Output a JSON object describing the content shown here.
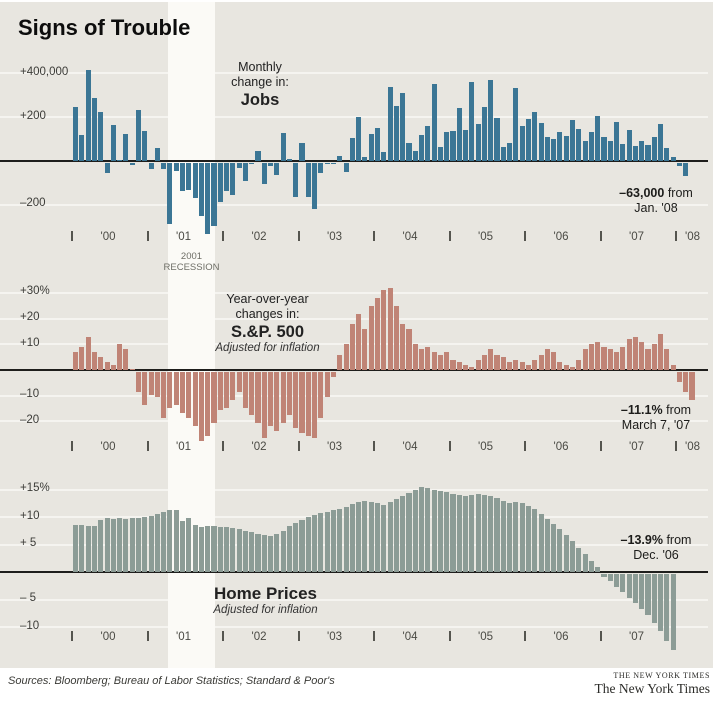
{
  "page": {
    "title": "Signs of Trouble"
  },
  "recession": {
    "line1": "2001",
    "line2": "RECESSION"
  },
  "footer": {
    "sources": "Sources: Bloomberg; Bureau of Labor Statistics; Standard & Poor's",
    "logo_small": "THE NEW YORK TIMES",
    "logo": "The New York Times"
  },
  "colors": {
    "background": "#e8e6e0",
    "recession_band": "#fbfaf6",
    "jobs_bar": "#3b7695",
    "sp500_bar": "#c08476",
    "home_bar": "#8c9c96",
    "zero_line": "#1e1e1c",
    "gridline": "#f5f4f0"
  },
  "chart_data": [
    {
      "id": "jobs",
      "type": "bar",
      "title_lines": [
        "Monthly",
        "change in:"
      ],
      "title_main": "Jobs",
      "subtitle": "",
      "bar_color": "#3b7695",
      "units": "thousands of jobs, monthly change, Jan 2000 - Feb 2008",
      "ylim": [
        -350,
        480
      ],
      "y_ticks": [
        {
          "v": 400,
          "label": "+400,000"
        },
        {
          "v": 200,
          "label": "+200"
        },
        {
          "v": -200,
          "label": "–200"
        }
      ],
      "x_ticks": [
        "'00",
        "'01",
        "'02",
        "'03",
        "'04",
        "'05",
        "'06",
        "'07",
        "'08"
      ],
      "annotation": {
        "value": "–63,000",
        "suffix": "from",
        "date": "Jan. '08"
      },
      "values": [
        249,
        121,
        416,
        286,
        225,
        -46,
        163,
        3,
        122,
        -11,
        231,
        138,
        -30,
        59,
        -30,
        -281,
        -40,
        -128,
        -125,
        -160,
        -244,
        -325,
        -292,
        -178,
        -132,
        -147,
        -24,
        -85,
        -7,
        45,
        -97,
        -16,
        -55,
        126,
        8,
        -156,
        83,
        -158,
        -212,
        -49,
        -6,
        -2,
        25,
        -42,
        103,
        203,
        18,
        124,
        150,
        43,
        338,
        250,
        310,
        81,
        47,
        121,
        160,
        351,
        64,
        132,
        136,
        240,
        142,
        360,
        169,
        246,
        369,
        195,
        63,
        84,
        334,
        158,
        193,
        225,
        175,
        112,
        100,
        134,
        113,
        188,
        148,
        92,
        132,
        206,
        111,
        90,
        177,
        78,
        144,
        69,
        93,
        74,
        110,
        170,
        60,
        18,
        -17,
        -63
      ]
    },
    {
      "id": "sp",
      "type": "bar",
      "title_lines": [
        "Year-over-year",
        "changes in:"
      ],
      "title_main": "S.&P. 500",
      "subtitle": "Adjusted for inflation",
      "bar_color": "#c08476",
      "units": "percent year-over-year, Jan 2000 - Mar 2008",
      "ylim": [
        -30,
        35
      ],
      "y_ticks": [
        {
          "v": 30,
          "label": "+30%"
        },
        {
          "v": 20,
          "label": "+20"
        },
        {
          "v": 10,
          "label": "+10"
        },
        {
          "v": -10,
          "label": "–10"
        },
        {
          "v": -20,
          "label": "–20"
        }
      ],
      "x_ticks": [
        "'00",
        "'01",
        "'02",
        "'03",
        "'04",
        "'05",
        "'06",
        "'07",
        "'08"
      ],
      "annotation": {
        "value": "–11.1%",
        "suffix": "from",
        "date": "March 7, '07"
      },
      "values": [
        7,
        9,
        13,
        7,
        5,
        3,
        2,
        10,
        8,
        0,
        -8,
        -13,
        -9,
        -10,
        -18,
        -14,
        -13,
        -16,
        -18,
        -21,
        -27,
        -25,
        -20,
        -15,
        -14,
        -11,
        -8,
        -14,
        -17,
        -20,
        -26,
        -21,
        -23,
        -20,
        -17,
        -22,
        -24,
        -25,
        -26,
        -18,
        -10,
        -2,
        6,
        10,
        18,
        22,
        16,
        25,
        28,
        31,
        32,
        25,
        18,
        16,
        10,
        8,
        9,
        7,
        6,
        7,
        4,
        3,
        2,
        1,
        4,
        6,
        8,
        6,
        5,
        3,
        4,
        3,
        2,
        4,
        6,
        8,
        7,
        3,
        2,
        1,
        4,
        8,
        10,
        11,
        9,
        8,
        7,
        9,
        12,
        13,
        11,
        8,
        10,
        14,
        8,
        2,
        -4,
        -8,
        -11.1
      ]
    },
    {
      "id": "home",
      "type": "bar",
      "title_lines": [],
      "title_main": "Home Prices",
      "subtitle": "Adjusted for inflation",
      "bar_color": "#8c9c96",
      "units": "percent year-over-year, Jan 2000 - Dec 2007",
      "ylim": [
        -15,
        17
      ],
      "y_ticks": [
        {
          "v": 15,
          "label": "+15%"
        },
        {
          "v": 10,
          "label": "+10"
        },
        {
          "v": 5,
          "label": "+ 5"
        },
        {
          "v": -5,
          "label": "– 5"
        },
        {
          "v": -10,
          "label": "–10"
        }
      ],
      "x_ticks": [
        "'00",
        "'01",
        "'02",
        "'03",
        "'04",
        "'05",
        "'06",
        "'07"
      ],
      "annotation": {
        "value": "–13.9%",
        "suffix": "from",
        "date": "Dec. '06"
      },
      "values": [
        8.5,
        8.5,
        8.3,
        8.4,
        9.5,
        9.8,
        9.6,
        9.8,
        9.7,
        9.8,
        9.9,
        10,
        10.2,
        10.5,
        11,
        11.2,
        11.3,
        9.2,
        9.8,
        8.5,
        8.2,
        8.3,
        8.4,
        8.2,
        8.2,
        8,
        7.8,
        7.5,
        7.2,
        7,
        6.8,
        6.6,
        7,
        7.5,
        8.3,
        9,
        9.5,
        10,
        10.4,
        10.8,
        11,
        11.3,
        11.5,
        11.8,
        12.4,
        12.8,
        13,
        12.8,
        12.5,
        12.2,
        12.7,
        13.2,
        13.8,
        14.4,
        15,
        15.5,
        15.3,
        15,
        14.8,
        14.5,
        14.2,
        14,
        13.8,
        14,
        14.2,
        14,
        13.8,
        13.4,
        13,
        12.6,
        12.8,
        12.5,
        12,
        11.4,
        10.6,
        9.7,
        8.8,
        7.8,
        6.7,
        5.6,
        4.4,
        3.2,
        2,
        0.9,
        -0.6,
        -1.4,
        -2.4,
        -3.4,
        -4.4,
        -5.4,
        -6.4,
        -7.6,
        -9,
        -10.5,
        -12.2,
        -13.9
      ]
    }
  ]
}
